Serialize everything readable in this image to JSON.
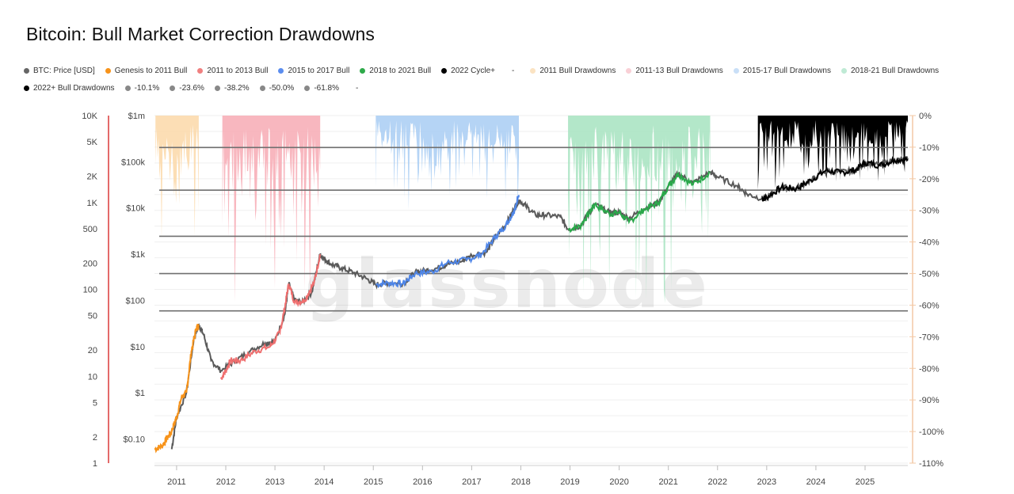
{
  "title": "Bitcoin: Bull Market Correction Drawdowns",
  "watermark": "glassnode",
  "legend": {
    "row1": [
      {
        "label": "BTC: Price [USD]",
        "color": "#666666"
      },
      {
        "label": "Genesis to 2011 Bull",
        "color": "#f7931a"
      },
      {
        "label": "2011 to 2013 Bull",
        "color": "#f08080"
      },
      {
        "label": "2015 to 2017 Bull",
        "color": "#5b8def"
      },
      {
        "label": "2018 to 2021 Bull",
        "color": "#2eaa4a"
      },
      {
        "label": "2022 Cycle+",
        "color": "#000000"
      }
    ],
    "row1_dash": "-",
    "row1b": [
      {
        "label": "2011 Bull Drawdowns",
        "color": "#fbe3c2"
      },
      {
        "label": "2011-13 Bull Drawdowns",
        "color": "#f9d0d6"
      },
      {
        "label": "2015-17 Bull Drawdowns",
        "color": "#c9dff7"
      },
      {
        "label": "2018-21 Bull Drawdowns",
        "color": "#bfead5"
      }
    ],
    "row2": [
      {
        "label": "2022+ Bull Drawdowns",
        "color": "#000000"
      },
      {
        "label": "-10.1%",
        "color": "#888888"
      },
      {
        "label": "-23.6%",
        "color": "#888888"
      },
      {
        "label": "-38.2%",
        "color": "#888888"
      },
      {
        "label": "-50.0%",
        "color": "#888888"
      },
      {
        "label": "-61.8%",
        "color": "#888888"
      }
    ],
    "row2_dash": "-"
  },
  "chart_data": {
    "type": "line",
    "title": "Bitcoin: Bull Market Correction Drawdowns",
    "x_ticks": [
      "2011",
      "2012",
      "2013",
      "2014",
      "2015",
      "2016",
      "2017",
      "2018",
      "2019",
      "2020",
      "2021",
      "2022",
      "2023",
      "2024",
      "2025"
    ],
    "x_range": [
      2010.55,
      2025.87
    ],
    "y_left_outer": {
      "ticks": [
        "10K",
        "5K",
        "2K",
        "1K",
        "500",
        "200",
        "100",
        "50",
        "20",
        "10",
        "5",
        "2",
        "1"
      ],
      "values": [
        10000,
        5000,
        2000,
        1000,
        500,
        200,
        100,
        50,
        20,
        10,
        5,
        2,
        1
      ],
      "scale": "log",
      "range": [
        1,
        10000
      ]
    },
    "y_left_price": {
      "ticks": [
        "$1m",
        "$100k",
        "$10k",
        "$1k",
        "$100",
        "$10",
        "$1",
        "$0.10"
      ],
      "values": [
        1000000,
        100000,
        10000,
        1000,
        100,
        10,
        1,
        0.1
      ],
      "scale": "log",
      "range": [
        0.03,
        1000000
      ]
    },
    "y_right_drawdown": {
      "ticks": [
        "0%",
        "-10%",
        "-20%",
        "-30%",
        "-40%",
        "-50%",
        "-60%",
        "-70%",
        "-80%",
        "-90%",
        "-100%",
        "-110%"
      ],
      "values": [
        0,
        -10,
        -20,
        -30,
        -40,
        -50,
        -60,
        -70,
        -80,
        -90,
        -100,
        -110
      ],
      "range": [
        -110,
        0
      ]
    },
    "fib_levels": [
      -10.1,
      -23.6,
      -38.2,
      -50.0,
      -61.8
    ],
    "price_series": {
      "name": "BTC: Price [USD]",
      "x": [
        2010.9,
        2011.0,
        2011.2,
        2011.35,
        2011.45,
        2011.55,
        2011.7,
        2011.9,
        2012.2,
        2012.5,
        2012.8,
        2013.0,
        2013.2,
        2013.28,
        2013.4,
        2013.55,
        2013.75,
        2013.92,
        2014.0,
        2014.15,
        2014.35,
        2014.6,
        2014.85,
        2015.05,
        2015.3,
        2015.6,
        2015.85,
        2016.0,
        2016.3,
        2016.5,
        2016.8,
        2017.0,
        2017.3,
        2017.5,
        2017.7,
        2017.85,
        2017.96,
        2018.1,
        2018.3,
        2018.5,
        2018.8,
        2018.96,
        2019.2,
        2019.4,
        2019.5,
        2019.8,
        2020.0,
        2020.2,
        2020.5,
        2020.8,
        2021.0,
        2021.2,
        2021.5,
        2021.85,
        2022.0,
        2022.4,
        2022.6,
        2022.9,
        2023.0,
        2023.3,
        2023.6,
        2023.9,
        2024.2,
        2024.5,
        2024.8,
        2025.0,
        2025.3,
        2025.6,
        2025.87
      ],
      "values": [
        0.06,
        0.3,
        1,
        15,
        30,
        18,
        5,
        3,
        5,
        8,
        12,
        13,
        50,
        230,
        100,
        90,
        150,
        1000,
        800,
        600,
        500,
        400,
        300,
        220,
        240,
        230,
        400,
        430,
        500,
        600,
        700,
        950,
        1100,
        2500,
        4500,
        9000,
        15000,
        11000,
        7000,
        7000,
        6500,
        3500,
        4000,
        8000,
        12000,
        8000,
        8000,
        6000,
        9500,
        13000,
        30000,
        55000,
        35000,
        60000,
        47000,
        30000,
        20000,
        16000,
        17000,
        28000,
        27000,
        40000,
        63000,
        60000,
        65000,
        95000,
        85000,
        110000,
        112000
      ]
    },
    "cycle_series": [
      {
        "name": "Genesis to 2011 Bull",
        "x": [
          2010.55,
          2010.7,
          2010.8,
          2010.9,
          2011.0,
          2011.1,
          2011.2,
          2011.3,
          2011.4,
          2011.45
        ],
        "values": [
          0.06,
          0.07,
          0.1,
          0.15,
          0.3,
          0.8,
          1,
          8,
          25,
          30
        ]
      },
      {
        "name": "2011 to 2013 Bull",
        "x": [
          2011.9,
          2012.0,
          2012.1,
          2012.3,
          2012.6,
          2012.9,
          2013.1,
          2013.2,
          2013.28,
          2013.4,
          2013.6,
          2013.8,
          2013.92
        ],
        "values": [
          2,
          3,
          5,
          5,
          8,
          10,
          20,
          70,
          230,
          90,
          100,
          250,
          1000
        ]
      },
      {
        "name": "2015 to 2017 Bull",
        "x": [
          2015.05,
          2015.3,
          2015.6,
          2015.85,
          2016.2,
          2016.5,
          2016.9,
          2017.2,
          2017.5,
          2017.7,
          2017.85,
          2017.96
        ],
        "values": [
          220,
          240,
          230,
          380,
          420,
          650,
          750,
          1000,
          2500,
          4300,
          8000,
          19000
        ]
      },
      {
        "name": "2018 to 2021 Bull",
        "x": [
          2018.96,
          2019.2,
          2019.4,
          2019.5,
          2019.8,
          2020.0,
          2020.2,
          2020.5,
          2020.8,
          2021.0,
          2021.2,
          2021.5,
          2021.85
        ],
        "values": [
          3400,
          4000,
          8000,
          12000,
          7500,
          8000,
          5000,
          9200,
          13000,
          30000,
          55000,
          32000,
          60000
        ]
      },
      {
        "name": "2022 Cycle+",
        "x": [
          2022.9,
          2023.0,
          2023.3,
          2023.6,
          2023.9,
          2024.2,
          2024.5,
          2024.8,
          2025.0,
          2025.3,
          2025.6,
          2025.87
        ],
        "values": [
          15500,
          17000,
          28000,
          26000,
          40000,
          65000,
          58000,
          66000,
          96000,
          84000,
          110000,
          113000
        ]
      }
    ],
    "drawdown_periods": [
      {
        "name": "2011 Bull Drawdowns",
        "x_start": 2010.57,
        "x_end": 2011.45,
        "max_drawdown": -48
      },
      {
        "name": "2011-13 Bull Drawdowns",
        "x_start": 2011.93,
        "x_end": 2013.92,
        "max_drawdown": -61
      },
      {
        "name": "2015-17 Bull Drawdowns",
        "x_start": 2015.05,
        "x_end": 2017.96,
        "max_drawdown": -31
      },
      {
        "name": "2018-21 Bull Drawdowns",
        "x_start": 2018.96,
        "x_end": 2021.85,
        "max_drawdown": -61
      },
      {
        "name": "2022+ Bull Drawdowns",
        "x_start": 2022.82,
        "x_end": 2025.87,
        "max_drawdown": -28
      }
    ]
  }
}
